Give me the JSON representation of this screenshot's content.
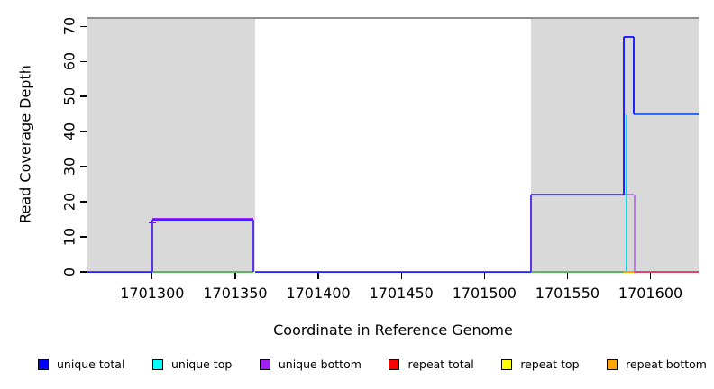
{
  "chart_data": {
    "type": "line",
    "title": "",
    "xlabel": "Coordinate in Reference Genome",
    "ylabel": "Read Coverage Depth",
    "xlim": [
      1701261,
      1701629
    ],
    "ylim": [
      0,
      72.6
    ],
    "grid": false,
    "x_ticks": [
      1701300,
      1701350,
      1701400,
      1701450,
      1701500,
      1701550,
      1701600
    ],
    "y_ticks": [
      0,
      10,
      20,
      30,
      40,
      50,
      60,
      70
    ],
    "legend_position": "bottom",
    "legend": [
      {
        "label": "unique total",
        "color": "#0000ff"
      },
      {
        "label": "unique top",
        "color": "#00ffff"
      },
      {
        "label": "unique bottom",
        "color": "#a020f0"
      },
      {
        "label": "repeat total",
        "color": "#ff0000"
      },
      {
        "label": "repeat top",
        "color": "#ffff00"
      },
      {
        "label": "repeat bottom",
        "color": "#ffa500"
      }
    ],
    "palette": {
      "blue": "#2222ff",
      "lightblue": "#2e6bff",
      "cyan": "#00dff0",
      "purple": "#a020f0",
      "lightpurple": "#b977f2",
      "green": "#5cb85c",
      "orange": "#ffa500",
      "red": "#e04468",
      "gray_line": "#8f8f8f",
      "region_fill": "#d9d9d9",
      "violet_blend_top": "#a020f0",
      "violet_blend_bottom": "#2222ff"
    },
    "background_regions": [
      {
        "name": "repeat-region-left",
        "x1": 1701261,
        "x2": 1701362,
        "color": "region_fill"
      },
      {
        "name": "repeat-region-right",
        "x1": 1701528,
        "x2": 1701629,
        "color": "region_fill"
      }
    ],
    "series_steps": {
      "unique_total": [
        [
          1701261,
          0
        ],
        [
          1701300,
          15
        ],
        [
          1701362,
          0
        ],
        [
          1701528,
          22
        ],
        [
          1701584,
          67
        ],
        [
          1701590,
          45
        ],
        [
          1701629,
          45
        ]
      ],
      "unique_top": [
        [
          1701261,
          0
        ],
        [
          1701584,
          45
        ],
        [
          1701629,
          45
        ]
      ],
      "unique_bottom": [
        [
          1701261,
          0
        ],
        [
          1701300,
          15
        ],
        [
          1701362,
          0
        ],
        [
          1701528,
          22
        ],
        [
          1701590,
          0
        ],
        [
          1701629,
          0
        ]
      ],
      "repeat_total": [
        [
          1701590,
          0
        ],
        [
          1701629,
          0
        ]
      ],
      "repeat_top": [
        [
          1701261,
          0
        ],
        [
          1701629,
          0
        ]
      ],
      "repeat_bottom": [
        [
          1701584,
          0
        ],
        [
          1701590,
          0
        ]
      ],
      "max_line_value": 72.3
    },
    "segments_h": [
      {
        "name": "max-coverage-line",
        "x1": 1701261,
        "x2": 1701629,
        "y": 72.3,
        "color": "gray_line",
        "w": 1.4
      },
      {
        "name": "baseline-left",
        "x1": 1701261,
        "x2": 1701300,
        "y": 0,
        "blend": true,
        "w": 2.2
      },
      {
        "name": "substep-14",
        "x1": 1701298,
        "x2": 1701302,
        "y": 14,
        "blend": true,
        "w": 2
      },
      {
        "name": "plateau-15",
        "x1": 1701300,
        "x2": 1701361,
        "y": 15,
        "blend": true,
        "w": 2.2
      },
      {
        "name": "green-baseline-left",
        "x1": 1701300,
        "x2": 1701361,
        "y": 0,
        "color": "green",
        "w": 1.3
      },
      {
        "name": "baseline-middle",
        "x1": 1701362,
        "x2": 1701528,
        "y": 0,
        "blend": true,
        "w": 2.2
      },
      {
        "name": "plateau-22",
        "x1": 1701528,
        "x2": 1701584,
        "y": 22,
        "blend": true,
        "w": 2.2
      },
      {
        "name": "green-baseline-right",
        "x1": 1701528,
        "x2": 1701584,
        "y": 0,
        "color": "green",
        "w": 1.3
      },
      {
        "name": "spike-top-67",
        "x1": 1701584,
        "x2": 1701590,
        "y": 67,
        "color": "blue",
        "w": 2.2
      },
      {
        "name": "bottom-22-under-spike",
        "x1": 1701584,
        "x2": 1701590,
        "y": 22,
        "color": "lightpurple",
        "w": 1.6
      },
      {
        "name": "orange-baseline",
        "x1": 1701584,
        "x2": 1701590,
        "y": 0,
        "color": "orange",
        "w": 1.7
      },
      {
        "name": "plateau-45",
        "x1": 1701590,
        "x2": 1701629,
        "y": 45,
        "color": "lightblue",
        "w": 2.2
      },
      {
        "name": "red-baseline",
        "x1": 1701590,
        "x2": 1701629,
        "y": 0,
        "color": "red",
        "w": 1.8
      }
    ],
    "segments_v": [
      {
        "name": "step-up-15",
        "x": 1701300,
        "y1": 0,
        "y2": 15,
        "blend": true,
        "w": 2.2
      },
      {
        "name": "step-down-15",
        "x": 1701361,
        "y1": 0,
        "y2": 15,
        "blend": true,
        "w": 2.2
      },
      {
        "name": "step-up-22",
        "x": 1701528,
        "y1": 0,
        "y2": 22,
        "blend": true,
        "w": 2.2
      },
      {
        "name": "cyan-rise-45",
        "x": 1701585.3,
        "y1": 0,
        "y2": 45,
        "color": "cyan",
        "w": 1.6
      },
      {
        "name": "spike-left-edge",
        "x": 1701584,
        "y1": 22,
        "y2": 67,
        "color": "blue",
        "w": 2.2
      },
      {
        "name": "spike-right-edge",
        "x": 1701590,
        "y1": 45,
        "y2": 67,
        "color": "blue",
        "w": 2.2
      },
      {
        "name": "purple-drop-22",
        "x": 1701590.6,
        "y1": 0,
        "y2": 22,
        "color": "lightpurple",
        "w": 1.6
      }
    ],
    "layout": {
      "plot_left": 97,
      "plot_right": 775,
      "plot_top": 19,
      "plot_bottom": 302,
      "x_tick_len": 7,
      "y_tick_len": 7,
      "x_tick_label_top": 316,
      "y_tick_label_cx": 77,
      "x_title_cx": 436,
      "x_title_top": 357,
      "y_title_cx": 28,
      "y_title_cy": 160
    }
  }
}
